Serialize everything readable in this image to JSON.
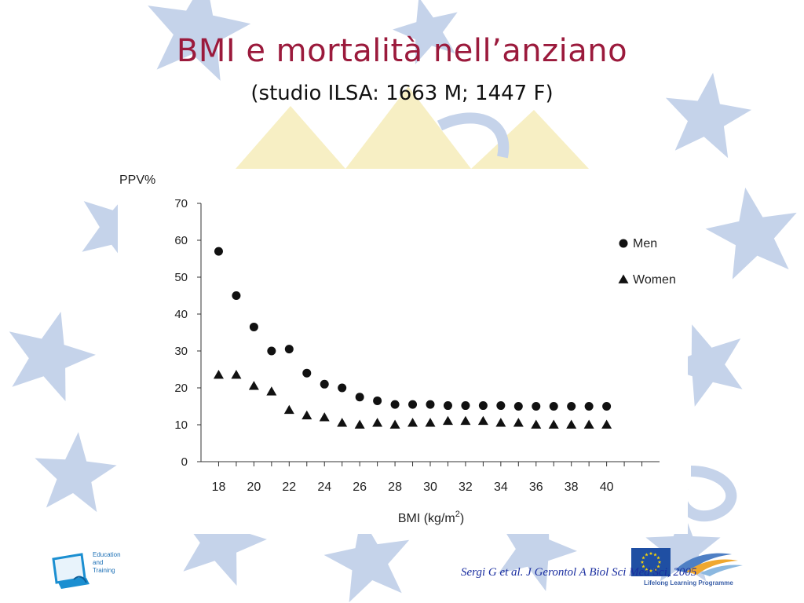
{
  "slide": {
    "title": "BMI e mortalità nell’anziano",
    "subtitle": "(studio ILSA: 1663 M; 1447 F)",
    "citation": "Sergi G et al.  J Gerontol A Biol Sci Med Sci, 2005",
    "logo_left_text": [
      "Education",
      "and",
      "Training"
    ],
    "logo_right_text": "Lifelong Learning Programme",
    "colors": {
      "title": "#9b1a3c",
      "subtitle": "#111111",
      "citation": "#1a2ea0",
      "star": "#c5d3ea",
      "triangle": "#f7efc4",
      "eu_flag": "#1f4fa3"
    }
  },
  "chart_data": {
    "type": "scatter",
    "ylabel": "PPV%",
    "xlabel": "BMI (kg/m",
    "xlabel_sup": "2",
    "xlabel_close": ")",
    "xlim": [
      17,
      43
    ],
    "ylim": [
      0,
      70
    ],
    "xticks": [
      18,
      20,
      22,
      24,
      26,
      28,
      30,
      32,
      34,
      36,
      38,
      40
    ],
    "yticks": [
      0,
      10,
      20,
      30,
      40,
      50,
      60,
      70
    ],
    "grid": false,
    "legend": "top-right",
    "series": [
      {
        "name": "Men",
        "marker": "circle",
        "x": [
          18,
          19,
          20,
          21,
          22,
          23,
          24,
          25,
          26,
          27,
          28,
          29,
          30,
          31,
          32,
          33,
          34,
          35,
          36,
          37,
          38,
          39,
          40
        ],
        "y": [
          57,
          45,
          36.5,
          30,
          30.5,
          24,
          21,
          20,
          17.5,
          16.5,
          15.5,
          15.5,
          15.5,
          15.2,
          15.2,
          15.2,
          15.2,
          15,
          15,
          15,
          15,
          15,
          15
        ]
      },
      {
        "name": "Women",
        "marker": "triangle",
        "x": [
          18,
          19,
          20,
          21,
          22,
          23,
          24,
          25,
          26,
          27,
          28,
          29,
          30,
          31,
          32,
          33,
          34,
          35,
          36,
          37,
          38,
          39,
          40
        ],
        "y": [
          23.5,
          23.5,
          20.5,
          19,
          14,
          12.5,
          12,
          10.5,
          10,
          10.5,
          10,
          10.5,
          10.5,
          11,
          11,
          11,
          10.5,
          10.5,
          10,
          10,
          10,
          10,
          10
        ]
      }
    ]
  }
}
